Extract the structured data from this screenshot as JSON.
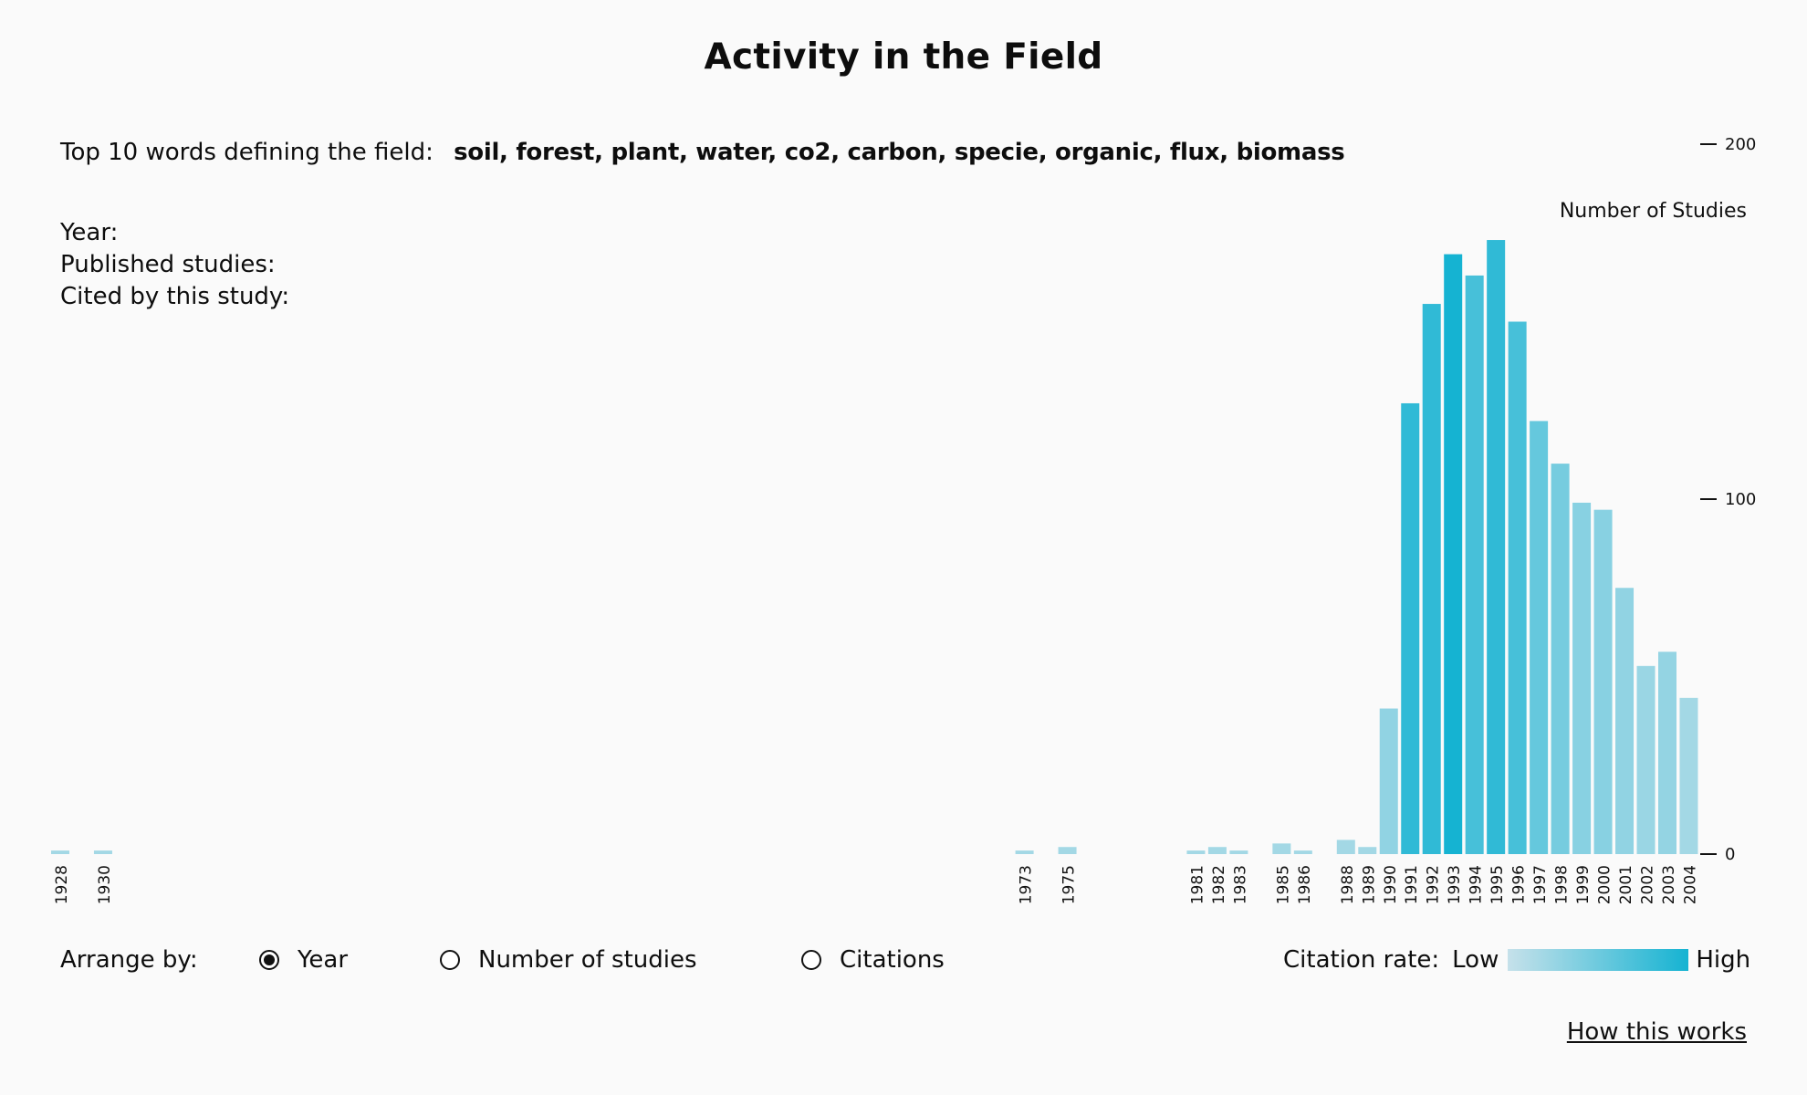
{
  "title": "Activity in the Field",
  "top_words": {
    "label": "Top 10 words defining the field:",
    "words": "soil, forest, plant, water, co2, carbon, specie, organic, flux, biomass"
  },
  "info": {
    "year_label": "Year:",
    "published_label": "Published studies:",
    "cited_label": "Cited by this study:"
  },
  "controls": {
    "arrange_label": "Arrange by:",
    "options": [
      "Year",
      "Number of studies",
      "Citations"
    ],
    "selected": "Year"
  },
  "legend": {
    "label": "Citation rate:",
    "low": "Low",
    "high": "High",
    "low_color": "#c6e1ea",
    "high_color": "#15b3d2"
  },
  "link": "How this works",
  "chart_data": {
    "type": "bar",
    "ylabel": "Number of Studies",
    "ylim": [
      0,
      200
    ],
    "yticks": [
      0,
      100,
      200
    ],
    "categories": [
      "1928",
      "1930",
      "1973",
      "1975",
      "1981",
      "1982",
      "1983",
      "1985",
      "1986",
      "1988",
      "1989",
      "1990",
      "1991",
      "1992",
      "1993",
      "1994",
      "1995",
      "1996",
      "1997",
      "1998",
      "1999",
      "2000",
      "2001",
      "2002",
      "2003",
      "2004"
    ],
    "values": [
      1,
      1,
      1,
      2,
      1,
      2,
      1,
      3,
      1,
      4,
      2,
      41,
      127,
      155,
      169,
      163,
      173,
      150,
      122,
      110,
      99,
      97,
      75,
      53,
      57,
      44
    ],
    "citation_rate": [
      0.2,
      0.2,
      0.2,
      0.2,
      0.2,
      0.2,
      0.2,
      0.2,
      0.2,
      0.2,
      0.2,
      0.3,
      0.85,
      0.85,
      1.0,
      0.72,
      0.85,
      0.72,
      0.55,
      0.45,
      0.35,
      0.35,
      0.3,
      0.25,
      0.28,
      0.2
    ]
  }
}
